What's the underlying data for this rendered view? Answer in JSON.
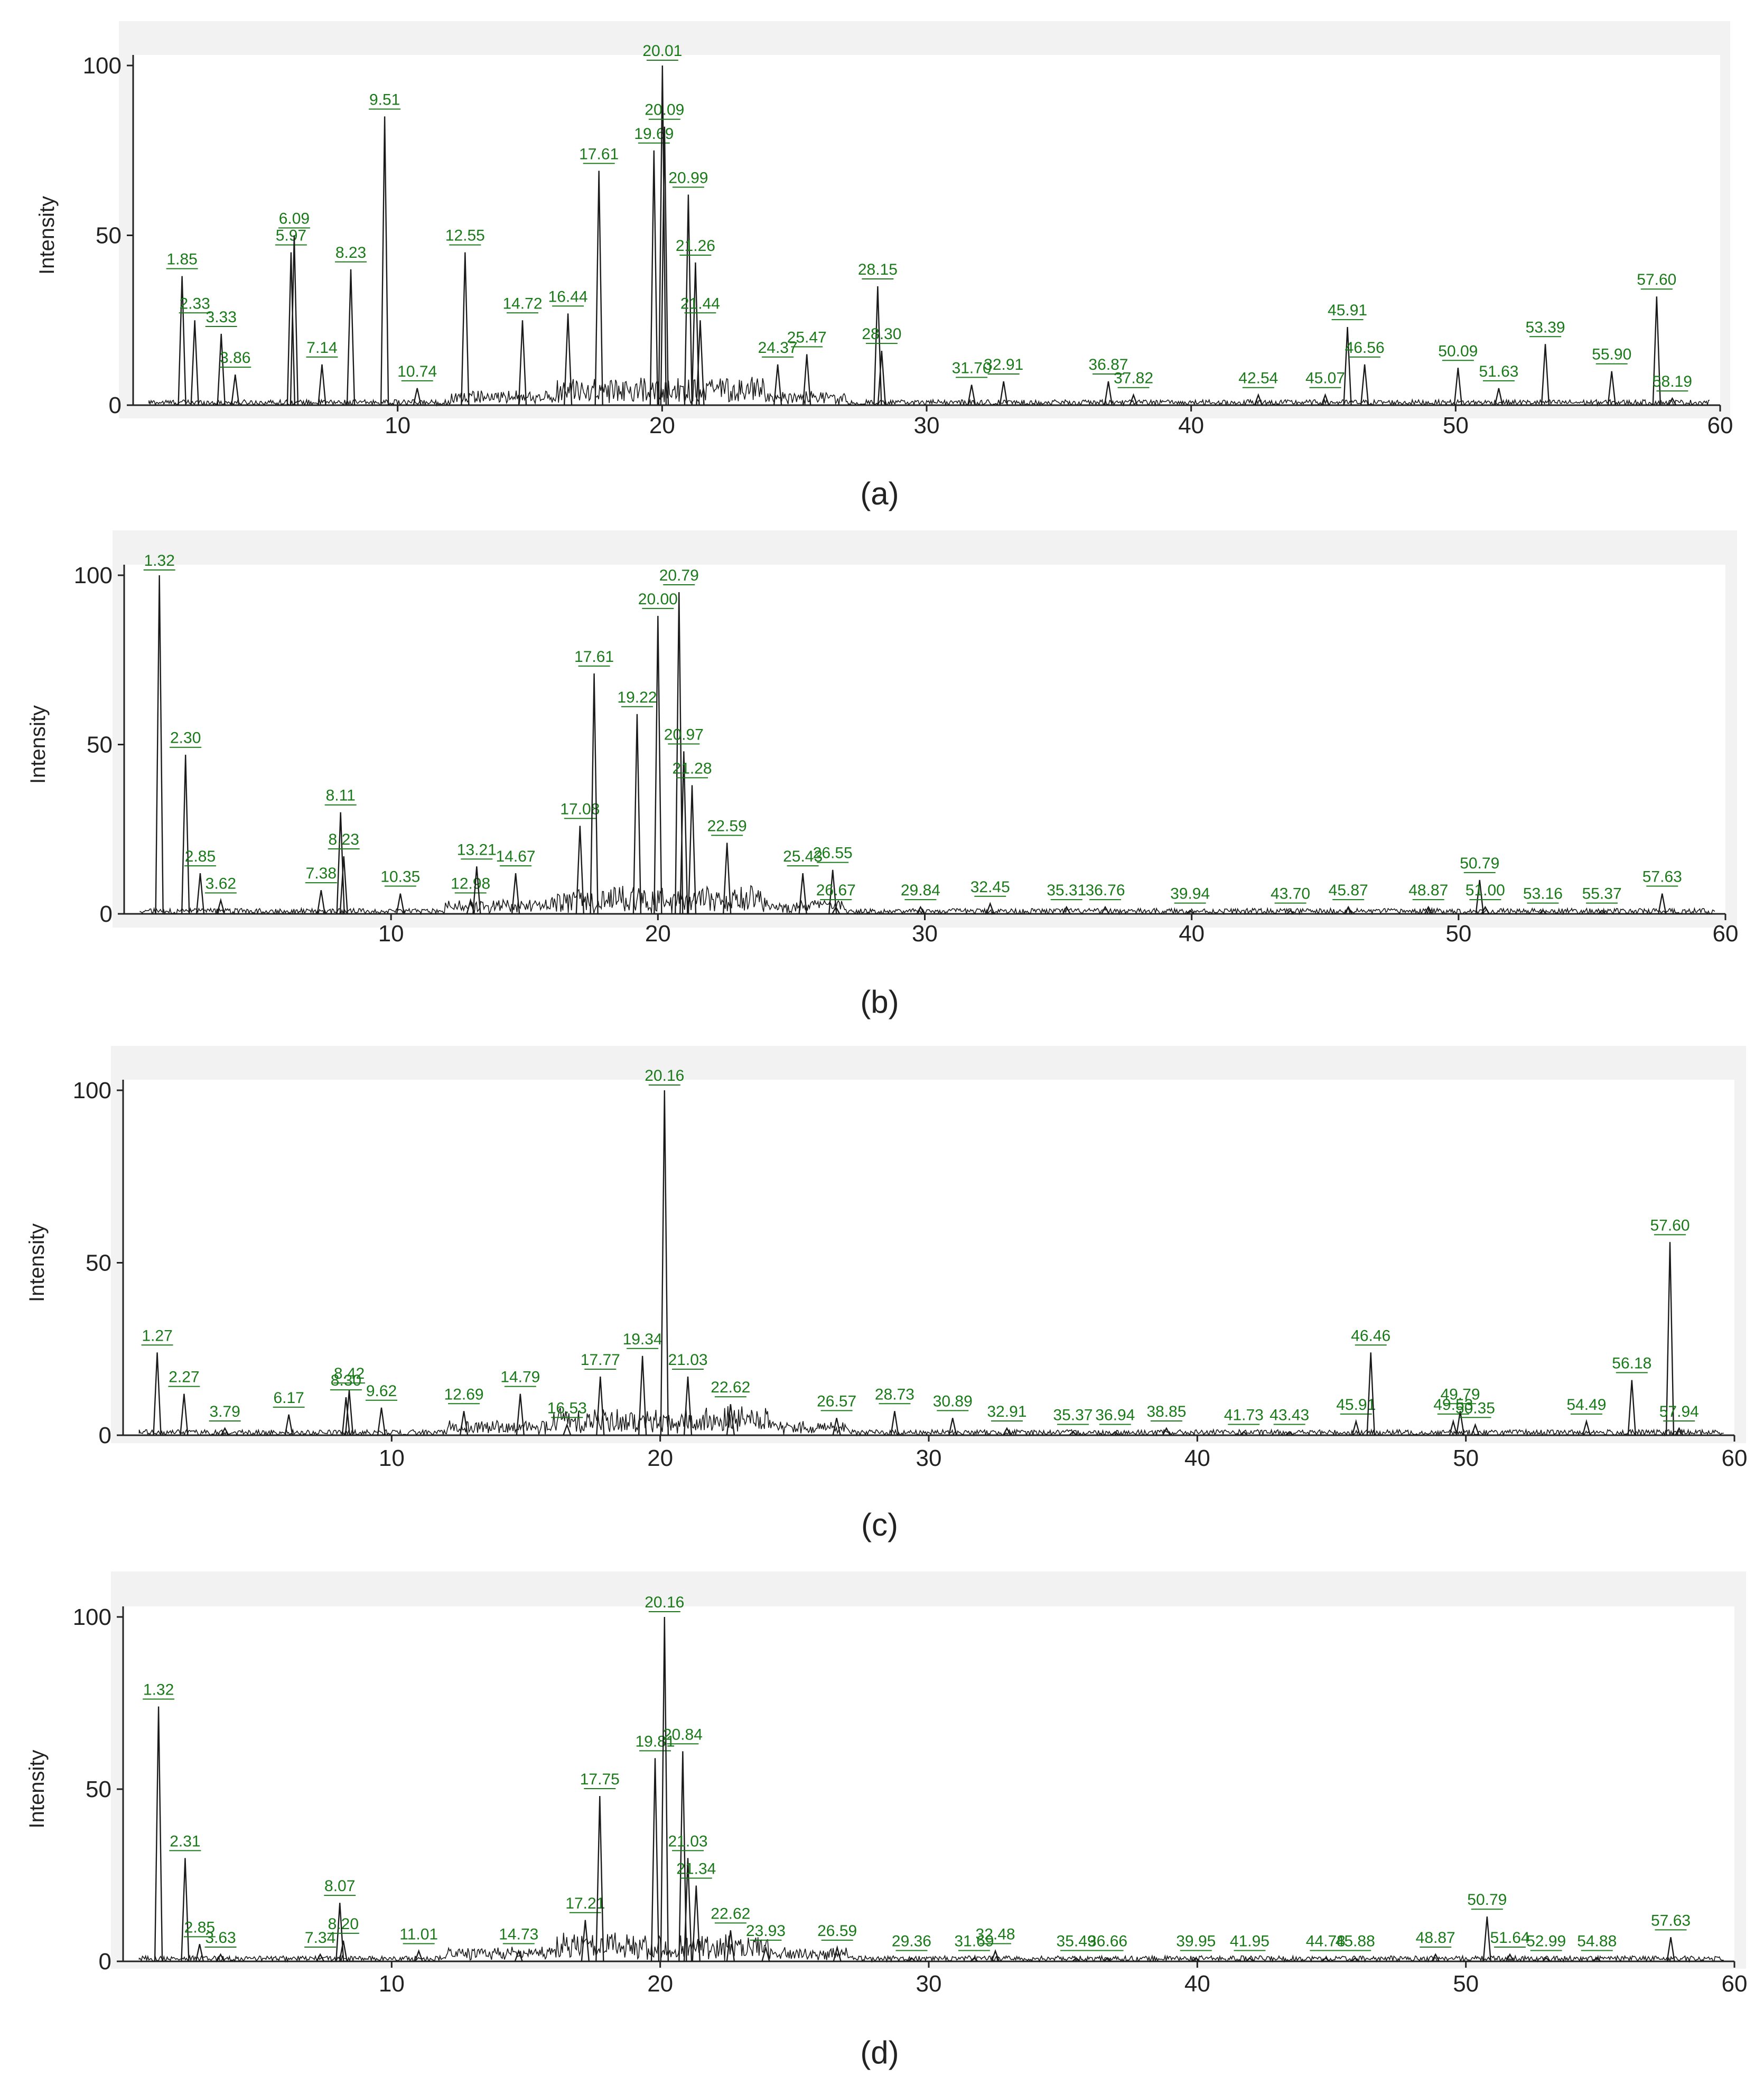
{
  "colors": {
    "trace": "#1a1a1a",
    "peak_label": "#1a7a1a",
    "panel_bg": "#f2f2f2",
    "plot_bg": "#ffffff",
    "axis": "#222222"
  },
  "chart_data": [
    {
      "panel": "(a)",
      "type": "line",
      "ylabel": "Intensity",
      "xlim": [
        0,
        60
      ],
      "ylim": [
        0,
        100
      ],
      "xticks": [
        10,
        20,
        30,
        40,
        50,
        60
      ],
      "yticks": [
        0,
        50,
        100
      ],
      "peaks": [
        {
          "label": "1.85",
          "x": 1.85,
          "y": 38
        },
        {
          "label": "2.33",
          "x": 2.33,
          "y": 25
        },
        {
          "label": "3.33",
          "x": 3.33,
          "y": 21
        },
        {
          "label": "3.86",
          "x": 3.86,
          "y": 9
        },
        {
          "label": "5.97",
          "x": 5.97,
          "y": 45
        },
        {
          "label": "6.09",
          "x": 6.09,
          "y": 50
        },
        {
          "label": "7.14",
          "x": 7.14,
          "y": 12
        },
        {
          "label": "8.23",
          "x": 8.23,
          "y": 40
        },
        {
          "label": "9.51",
          "x": 9.51,
          "y": 85
        },
        {
          "label": "10.74",
          "x": 10.74,
          "y": 5
        },
        {
          "label": "12.55",
          "x": 12.55,
          "y": 45
        },
        {
          "label": "14.72",
          "x": 14.72,
          "y": 25
        },
        {
          "label": "16.44",
          "x": 16.44,
          "y": 27
        },
        {
          "label": "17.61",
          "x": 17.61,
          "y": 69
        },
        {
          "label": "19.69",
          "x": 19.69,
          "y": 75
        },
        {
          "label": "20.01",
          "x": 20.01,
          "y": 100
        },
        {
          "label": "20.09",
          "x": 20.09,
          "y": 82
        },
        {
          "label": "20.99",
          "x": 20.99,
          "y": 62
        },
        {
          "label": "21.26",
          "x": 21.26,
          "y": 42
        },
        {
          "label": "21.44",
          "x": 21.44,
          "y": 25
        },
        {
          "label": "24.37",
          "x": 24.37,
          "y": 12
        },
        {
          "label": "25.47",
          "x": 25.47,
          "y": 15
        },
        {
          "label": "28.15",
          "x": 28.15,
          "y": 35
        },
        {
          "label": "28.30",
          "x": 28.3,
          "y": 16
        },
        {
          "label": "31.70",
          "x": 31.7,
          "y": 6
        },
        {
          "label": "32.91",
          "x": 32.91,
          "y": 7
        },
        {
          "label": "36.87",
          "x": 36.87,
          "y": 7
        },
        {
          "label": "37.82",
          "x": 37.82,
          "y": 3
        },
        {
          "label": "42.54",
          "x": 42.54,
          "y": 3
        },
        {
          "label": "45.07",
          "x": 45.07,
          "y": 3
        },
        {
          "label": "45.91",
          "x": 45.91,
          "y": 23
        },
        {
          "label": "46.56",
          "x": 46.56,
          "y": 12
        },
        {
          "label": "50.09",
          "x": 50.09,
          "y": 11
        },
        {
          "label": "51.63",
          "x": 51.63,
          "y": 5
        },
        {
          "label": "53.39",
          "x": 53.39,
          "y": 18
        },
        {
          "label": "55.90",
          "x": 55.9,
          "y": 10
        },
        {
          "label": "57.60",
          "x": 57.6,
          "y": 32
        },
        {
          "label": "58.19",
          "x": 58.19,
          "y": 2
        }
      ]
    },
    {
      "panel": "(b)",
      "type": "line",
      "ylabel": "Intensity",
      "xlim": [
        0,
        60
      ],
      "ylim": [
        0,
        100
      ],
      "xticks": [
        10,
        20,
        30,
        40,
        50,
        60
      ],
      "yticks": [
        0,
        50,
        100
      ],
      "peaks": [
        {
          "label": "1.32",
          "x": 1.32,
          "y": 100
        },
        {
          "label": "2.30",
          "x": 2.3,
          "y": 47
        },
        {
          "label": "2.85",
          "x": 2.85,
          "y": 12
        },
        {
          "label": "3.62",
          "x": 3.62,
          "y": 4
        },
        {
          "label": "7.38",
          "x": 7.38,
          "y": 7
        },
        {
          "label": "8.11",
          "x": 8.11,
          "y": 30
        },
        {
          "label": "8.23",
          "x": 8.23,
          "y": 17
        },
        {
          "label": "10.35",
          "x": 10.35,
          "y": 6
        },
        {
          "label": "12.98",
          "x": 12.98,
          "y": 4
        },
        {
          "label": "13.21",
          "x": 13.21,
          "y": 14
        },
        {
          "label": "14.67",
          "x": 14.67,
          "y": 12
        },
        {
          "label": "17.08",
          "x": 17.08,
          "y": 26
        },
        {
          "label": "17.61",
          "x": 17.61,
          "y": 71
        },
        {
          "label": "19.22",
          "x": 19.22,
          "y": 59
        },
        {
          "label": "20.00",
          "x": 20.0,
          "y": 88
        },
        {
          "label": "20.79",
          "x": 20.79,
          "y": 95
        },
        {
          "label": "20.97",
          "x": 20.97,
          "y": 48
        },
        {
          "label": "21.28",
          "x": 21.28,
          "y": 38
        },
        {
          "label": "22.59",
          "x": 22.59,
          "y": 21
        },
        {
          "label": "25.43",
          "x": 25.43,
          "y": 12
        },
        {
          "label": "26.55",
          "x": 26.55,
          "y": 13
        },
        {
          "label": "26.67",
          "x": 26.67,
          "y": 2
        },
        {
          "label": "29.84",
          "x": 29.84,
          "y": 2
        },
        {
          "label": "32.45",
          "x": 32.45,
          "y": 3
        },
        {
          "label": "35.31",
          "x": 35.31,
          "y": 2
        },
        {
          "label": "36.76",
          "x": 36.76,
          "y": 2
        },
        {
          "label": "39.94",
          "x": 39.94,
          "y": 1
        },
        {
          "label": "43.70",
          "x": 43.7,
          "y": 1
        },
        {
          "label": "45.87",
          "x": 45.87,
          "y": 2
        },
        {
          "label": "48.87",
          "x": 48.87,
          "y": 2
        },
        {
          "label": "50.79",
          "x": 50.79,
          "y": 10
        },
        {
          "label": "51.00",
          "x": 51.0,
          "y": 2
        },
        {
          "label": "53.16",
          "x": 53.16,
          "y": 1
        },
        {
          "label": "55.37",
          "x": 55.37,
          "y": 1
        },
        {
          "label": "57.63",
          "x": 57.63,
          "y": 6
        }
      ]
    },
    {
      "panel": "(c)",
      "type": "line",
      "ylabel": "Intensity",
      "xlim": [
        0,
        60
      ],
      "ylim": [
        0,
        100
      ],
      "xticks": [
        10,
        20,
        30,
        40,
        50,
        60
      ],
      "yticks": [
        0,
        50,
        100
      ],
      "peaks": [
        {
          "label": "1.27",
          "x": 1.27,
          "y": 24
        },
        {
          "label": "2.27",
          "x": 2.27,
          "y": 12
        },
        {
          "label": "3.79",
          "x": 3.79,
          "y": 2
        },
        {
          "label": "6.17",
          "x": 6.17,
          "y": 6
        },
        {
          "label": "8.30",
          "x": 8.3,
          "y": 11
        },
        {
          "label": "8.42",
          "x": 8.42,
          "y": 13
        },
        {
          "label": "9.62",
          "x": 9.62,
          "y": 8
        },
        {
          "label": "12.69",
          "x": 12.69,
          "y": 7
        },
        {
          "label": "14.79",
          "x": 14.79,
          "y": 12
        },
        {
          "label": "16.53",
          "x": 16.53,
          "y": 3
        },
        {
          "label": "17.77",
          "x": 17.77,
          "y": 17
        },
        {
          "label": "19.34",
          "x": 19.34,
          "y": 23
        },
        {
          "label": "20.16",
          "x": 20.16,
          "y": 100
        },
        {
          "label": "21.03",
          "x": 21.03,
          "y": 17
        },
        {
          "label": "22.62",
          "x": 22.62,
          "y": 9
        },
        {
          "label": "26.57",
          "x": 26.57,
          "y": 5
        },
        {
          "label": "28.73",
          "x": 28.73,
          "y": 7
        },
        {
          "label": "30.89",
          "x": 30.89,
          "y": 5
        },
        {
          "label": "32.91",
          "x": 32.91,
          "y": 2
        },
        {
          "label": "35.37",
          "x": 35.37,
          "y": 1
        },
        {
          "label": "36.94",
          "x": 36.94,
          "y": 1
        },
        {
          "label": "38.85",
          "x": 38.85,
          "y": 2
        },
        {
          "label": "41.73",
          "x": 41.73,
          "y": 1
        },
        {
          "label": "43.43",
          "x": 43.43,
          "y": 1
        },
        {
          "label": "45.91",
          "x": 45.91,
          "y": 4
        },
        {
          "label": "46.46",
          "x": 46.46,
          "y": 24
        },
        {
          "label": "49.53",
          "x": 49.53,
          "y": 4
        },
        {
          "label": "49.79",
          "x": 49.79,
          "y": 7
        },
        {
          "label": "50.35",
          "x": 50.35,
          "y": 3
        },
        {
          "label": "54.49",
          "x": 54.49,
          "y": 4
        },
        {
          "label": "56.18",
          "x": 56.18,
          "y": 16
        },
        {
          "label": "57.60",
          "x": 57.6,
          "y": 56
        },
        {
          "label": "57.94",
          "x": 57.94,
          "y": 2
        }
      ]
    },
    {
      "panel": "(d)",
      "type": "line",
      "ylabel": "Intensity",
      "xlim": [
        0,
        60
      ],
      "ylim": [
        0,
        100
      ],
      "xticks": [
        10,
        20,
        30,
        40,
        50,
        60
      ],
      "yticks": [
        0,
        50,
        100
      ],
      "peaks": [
        {
          "label": "1.32",
          "x": 1.32,
          "y": 74
        },
        {
          "label": "2.31",
          "x": 2.31,
          "y": 30
        },
        {
          "label": "2.85",
          "x": 2.85,
          "y": 5
        },
        {
          "label": "3.63",
          "x": 3.63,
          "y": 2
        },
        {
          "label": "7.34",
          "x": 7.34,
          "y": 2
        },
        {
          "label": "8.07",
          "x": 8.07,
          "y": 17
        },
        {
          "label": "8.20",
          "x": 8.2,
          "y": 6
        },
        {
          "label": "11.01",
          "x": 11.01,
          "y": 3
        },
        {
          "label": "14.73",
          "x": 14.73,
          "y": 3
        },
        {
          "label": "17.21",
          "x": 17.21,
          "y": 12
        },
        {
          "label": "17.75",
          "x": 17.75,
          "y": 48
        },
        {
          "label": "19.81",
          "x": 19.81,
          "y": 59
        },
        {
          "label": "20.16",
          "x": 20.16,
          "y": 100
        },
        {
          "label": "20.84",
          "x": 20.84,
          "y": 61
        },
        {
          "label": "21.03",
          "x": 21.03,
          "y": 30
        },
        {
          "label": "21.34",
          "x": 21.34,
          "y": 22
        },
        {
          "label": "22.62",
          "x": 22.62,
          "y": 9
        },
        {
          "label": "23.93",
          "x": 23.93,
          "y": 4
        },
        {
          "label": "26.59",
          "x": 26.59,
          "y": 4
        },
        {
          "label": "29.36",
          "x": 29.36,
          "y": 1
        },
        {
          "label": "31.69",
          "x": 31.69,
          "y": 1
        },
        {
          "label": "32.48",
          "x": 32.48,
          "y": 3
        },
        {
          "label": "35.49",
          "x": 35.49,
          "y": 1
        },
        {
          "label": "36.66",
          "x": 36.66,
          "y": 1
        },
        {
          "label": "39.95",
          "x": 39.95,
          "y": 1
        },
        {
          "label": "41.95",
          "x": 41.95,
          "y": 1
        },
        {
          "label": "44.78",
          "x": 44.78,
          "y": 1
        },
        {
          "label": "45.88",
          "x": 45.88,
          "y": 1
        },
        {
          "label": "48.87",
          "x": 48.87,
          "y": 2
        },
        {
          "label": "50.79",
          "x": 50.79,
          "y": 13
        },
        {
          "label": "51.64",
          "x": 51.64,
          "y": 2
        },
        {
          "label": "52.99",
          "x": 52.99,
          "y": 1
        },
        {
          "label": "54.88",
          "x": 54.88,
          "y": 1
        },
        {
          "label": "57.63",
          "x": 57.63,
          "y": 7
        }
      ]
    }
  ]
}
